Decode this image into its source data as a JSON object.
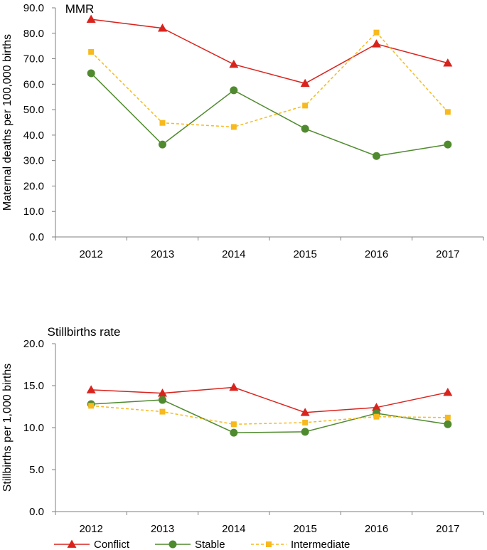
{
  "chart_data": [
    {
      "type": "line",
      "title": "MMR",
      "xlabel": "",
      "ylabel": "Maternal deaths per 100,000 births",
      "categories": [
        "2012",
        "2013",
        "2014",
        "2015",
        "2016",
        "2017"
      ],
      "ylim": [
        0,
        90
      ],
      "yticks": [
        "0.0",
        "10.0",
        "20.0",
        "30.0",
        "40.0",
        "50.0",
        "60.0",
        "70.0",
        "80.0",
        "90.0"
      ],
      "grid": false,
      "series": [
        {
          "name": "Conflict",
          "values": [
            85.5,
            82.0,
            67.8,
            60.3,
            75.8,
            68.3
          ],
          "color": "#d9231d",
          "marker": "triangle",
          "dash": false
        },
        {
          "name": "Stable",
          "values": [
            64.3,
            36.3,
            57.6,
            42.5,
            31.8,
            36.3
          ],
          "color": "#508a2f",
          "marker": "circle",
          "dash": false
        },
        {
          "name": "Intermediate",
          "values": [
            72.7,
            44.8,
            43.2,
            51.6,
            80.3,
            49.1
          ],
          "color": "#f7b91c",
          "marker": "square",
          "dash": true
        }
      ]
    },
    {
      "type": "line",
      "title": "Stillbirths  rate",
      "xlabel": "",
      "ylabel": "Stillbirths per 1,000 births",
      "categories": [
        "2012",
        "2013",
        "2014",
        "2015",
        "2016",
        "2017"
      ],
      "ylim": [
        0,
        20
      ],
      "yticks": [
        "0.0",
        "5.0",
        "10.0",
        "15.0",
        "20.0"
      ],
      "grid": false,
      "legend_position": "bottom",
      "series": [
        {
          "name": "Conflict",
          "values": [
            14.5,
            14.1,
            14.8,
            11.8,
            12.4,
            14.2
          ],
          "color": "#d9231d",
          "marker": "triangle",
          "dash": false
        },
        {
          "name": "Stable",
          "values": [
            12.8,
            13.3,
            9.4,
            9.5,
            11.7,
            10.4
          ],
          "color": "#508a2f",
          "marker": "circle",
          "dash": false
        },
        {
          "name": "Intermediate",
          "values": [
            12.6,
            11.9,
            10.4,
            10.6,
            11.3,
            11.2
          ],
          "color": "#f7b91c",
          "marker": "square",
          "dash": true
        }
      ]
    }
  ],
  "legend": [
    {
      "label": "Conflict",
      "color": "#d9231d",
      "marker": "triangle",
      "dash": false
    },
    {
      "label": "Stable",
      "color": "#508a2f",
      "marker": "circle",
      "dash": false
    },
    {
      "label": "Intermediate",
      "color": "#f7b91c",
      "marker": "square",
      "dash": true
    }
  ]
}
